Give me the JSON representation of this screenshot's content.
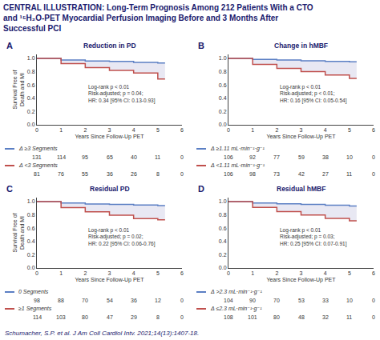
{
  "title": "CENTRAL ILLUSTRATION: Long-Term Prognosis Among 212 Patients With a CTO and ¹⁵H₂O-PET Myocardial Perfusion Imaging Before and 3 Months After Successful PCI",
  "annotations": [
    "Schumacher, S.P. et al. J Am Coll Cardiol Intv. 2021;14(13):1407-18."
  ],
  "chart_data": [
    {
      "type": "line",
      "title": "A",
      "subtitle": "Reduction in PD",
      "line_style": "step",
      "grid": false,
      "xlabel": "Years Since Follow-Up PET",
      "ylabel": "Survival Free of\nDeath and MI",
      "annotations": [
        "Log-rank p < 0.01\nRisk-adjusted; p = 0.04;\nHR: 0.34 [95% CI: 0.13-0.93]"
      ],
      "xlim": [
        0,
        6
      ],
      "xticks": [
        0,
        1,
        2,
        3,
        4,
        5,
        6
      ],
      "ylim": [
        0,
        1.06
      ],
      "yticks": [
        {
          "value": 0,
          "label": "0.0"
        },
        0.2,
        0.4,
        0.6,
        0.8,
        {
          "value": 1,
          "label": "1.0"
        }
      ],
      "series": [
        {
          "name": "Δ ≥3 Segments",
          "color": "#5b7fc4",
          "x": [
            0,
            1,
            2,
            3,
            4,
            5,
            5.3
          ],
          "values": [
            1.0,
            0.977,
            0.962,
            0.954,
            0.94,
            0.93,
            0.93
          ],
          "at_risk": [
            131,
            114,
            95,
            65,
            40,
            11,
            0
          ]
        },
        {
          "name": "Δ <3 Segments",
          "color": "#c0504d",
          "x": [
            0,
            1,
            2,
            3,
            4,
            5,
            5.3
          ],
          "values": [
            1.0,
            0.92,
            0.86,
            0.82,
            0.78,
            0.69,
            0.69
          ],
          "at_risk": [
            81,
            76,
            55,
            36,
            26,
            8,
            0
          ]
        }
      ]
    },
    {
      "type": "line",
      "title": "B",
      "subtitle": "Change in hMBF",
      "line_style": "step",
      "grid": false,
      "xlabel": "Years Since Follow-Up PET",
      "annotations": [
        "Log-rank p < 0.01\nRisk-adjusted; p < 0.01;\nHR: 0.16 [95% CI: 0.05-0.54]"
      ],
      "xlim": [
        0,
        6
      ],
      "xticks": [
        0,
        1,
        2,
        3,
        4,
        5,
        6
      ],
      "ylim": [
        0,
        1.06
      ],
      "yticks": [
        {
          "value": 0,
          "label": "0.0"
        },
        0.2,
        0.4,
        0.6,
        0.8,
        {
          "value": 1,
          "label": "1.0"
        }
      ],
      "series": [
        {
          "name": "Δ ≥1.11 mL·min⁻¹·g⁻¹",
          "color": "#5b7fc4",
          "x": [
            0,
            1,
            2,
            3,
            4,
            5,
            5.3
          ],
          "values": [
            1.0,
            0.985,
            0.975,
            0.965,
            0.955,
            0.95,
            0.95
          ],
          "at_risk": [
            106,
            92,
            77,
            59,
            38,
            10,
            0
          ]
        },
        {
          "name": "Δ <1.11 mL·min⁻¹·g⁻¹",
          "color": "#c0504d",
          "x": [
            0,
            1,
            2,
            3,
            4,
            5,
            5.3
          ],
          "values": [
            1.0,
            0.91,
            0.85,
            0.8,
            0.75,
            0.7,
            0.7
          ],
          "at_risk": [
            106,
            98,
            73,
            42,
            27,
            11,
            0
          ]
        }
      ]
    },
    {
      "type": "line",
      "title": "C",
      "subtitle": "Residual PD",
      "line_style": "step",
      "grid": false,
      "xlabel": "Years Since Follow-Up PET",
      "ylabel": "Survival Free of\nDeath and MI",
      "annotations": [
        "Log-rank p < 0.01\nRisk-adjusted; p = 0.02;\nHR: 0.22 [95% CI: 0.06-0.76]"
      ],
      "xlim": [
        0,
        6
      ],
      "xticks": [
        0,
        1,
        2,
        3,
        4,
        5,
        6
      ],
      "ylim": [
        0,
        1.06
      ],
      "yticks": [
        {
          "value": 0,
          "label": "0.0"
        },
        0.2,
        0.4,
        0.6,
        0.8,
        {
          "value": 1,
          "label": "1.0"
        }
      ],
      "series": [
        {
          "name": "0 Segments",
          "color": "#5b7fc4",
          "x": [
            0,
            1,
            2,
            3,
            4,
            5,
            5.3
          ],
          "values": [
            1.0,
            0.978,
            0.965,
            0.957,
            0.948,
            0.94,
            0.94
          ],
          "at_risk": [
            98,
            88,
            70,
            54,
            36,
            12,
            0
          ]
        },
        {
          "name": "≥1 Segments",
          "color": "#c0504d",
          "x": [
            0,
            1,
            2,
            3,
            4,
            5,
            5.3
          ],
          "values": [
            1.0,
            0.91,
            0.845,
            0.795,
            0.745,
            0.725,
            0.725
          ],
          "at_risk": [
            114,
            103,
            80,
            47,
            29,
            8,
            0
          ]
        }
      ]
    },
    {
      "type": "line",
      "title": "D",
      "subtitle": "Residual hMBF",
      "line_style": "step",
      "grid": false,
      "xlabel": "Years Since Follow-Up PET",
      "annotations": [
        "Log-rank p < 0.01\nRisk-adjusted; p = 0.03;\nHR: 0.25 [95% CI: 0.07-0.91]"
      ],
      "xlim": [
        0,
        6
      ],
      "xticks": [
        0,
        1,
        2,
        3,
        4,
        5,
        6
      ],
      "ylim": [
        0,
        1.06
      ],
      "yticks": [
        {
          "value": 0,
          "label": "0.0"
        },
        0.2,
        0.4,
        0.6,
        0.8,
        {
          "value": 1,
          "label": "1.0"
        }
      ],
      "series": [
        {
          "name": "Δ >2.3 mL·min⁻¹·g⁻¹",
          "color": "#5b7fc4",
          "x": [
            0,
            1,
            2,
            3,
            4,
            5,
            5.3
          ],
          "values": [
            1.0,
            0.98,
            0.968,
            0.958,
            0.946,
            0.935,
            0.935
          ],
          "at_risk": [
            104,
            90,
            70,
            53,
            33,
            10,
            0
          ]
        },
        {
          "name": "Δ ≤2.3 mL·min⁻¹·g⁻¹",
          "color": "#c0504d",
          "x": [
            0,
            1,
            2,
            3,
            4,
            5,
            5.3
          ],
          "values": [
            1.0,
            0.912,
            0.848,
            0.797,
            0.748,
            0.71,
            0.71
          ],
          "at_risk": [
            108,
            101,
            80,
            48,
            32,
            11,
            0
          ]
        }
      ]
    }
  ]
}
